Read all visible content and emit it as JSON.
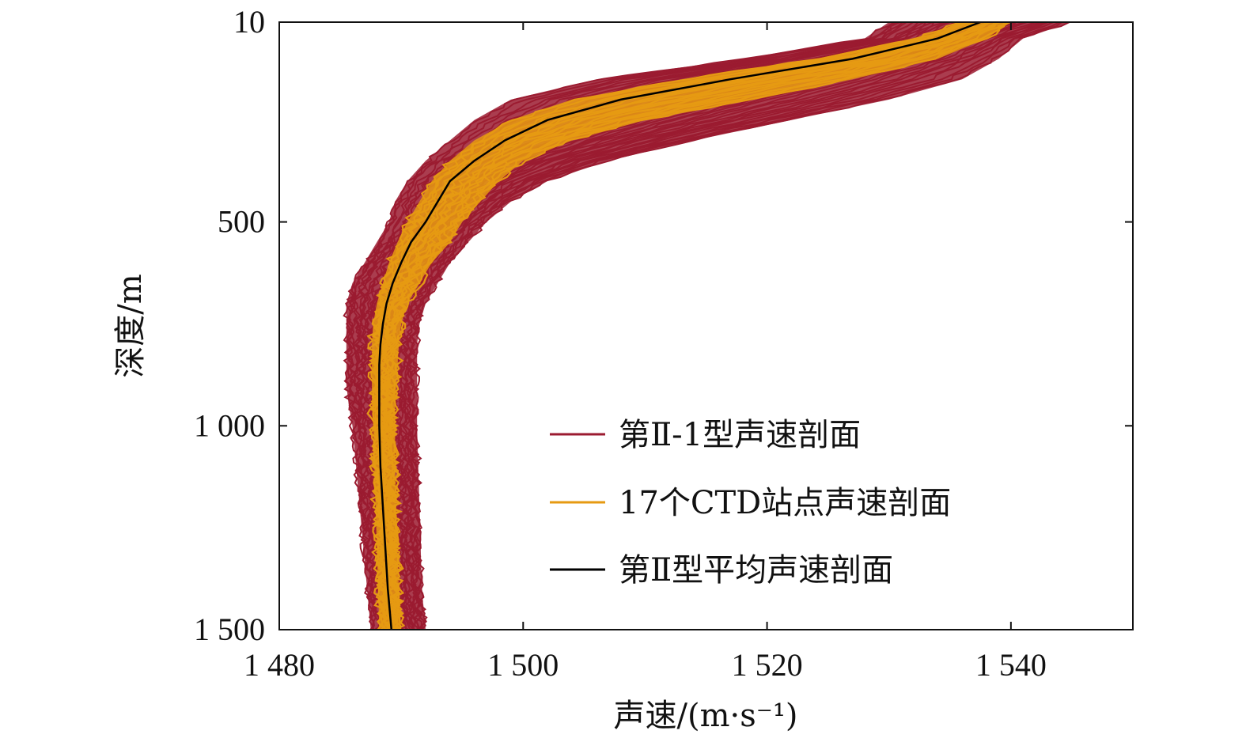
{
  "chart_data": {
    "type": "line",
    "xlabel": "声速/(m·s⁻¹)",
    "ylabel": "深度/m",
    "xlim": [
      1480,
      1550
    ],
    "ylim": [
      1500,
      10
    ],
    "y_inverted": true,
    "x_ticks": [
      1480,
      1500,
      1520,
      1540
    ],
    "x_tick_labels": [
      "1 480",
      "1 500",
      "1 520",
      "1 540"
    ],
    "y_ticks": [
      10,
      500,
      1000,
      1500
    ],
    "y_tick_labels": [
      "10",
      "500",
      "1 000",
      "1 500"
    ],
    "grid": false,
    "legend_position": "lower-right",
    "colors": {
      "type_ii_1": "#9b1b30",
      "ctd": "#e69a12",
      "mean": "#000000",
      "axis": "#111111"
    },
    "series": [
      {
        "name": "第Ⅱ-1型声速剖面",
        "kind": "band",
        "depth": [
          10,
          50,
          100,
          150,
          200,
          250,
          300,
          350,
          400,
          450,
          500,
          550,
          600,
          650,
          700,
          750,
          800,
          850,
          900,
          950,
          1000,
          1100,
          1200,
          1300,
          1400,
          1500
        ],
        "min": [
          1530,
          1528,
          1518,
          1506,
          1499,
          1496,
          1494,
          1492,
          1490.5,
          1489.5,
          1489,
          1488,
          1487,
          1486,
          1485.5,
          1485.5,
          1485.5,
          1485.5,
          1485.5,
          1485.7,
          1486,
          1486.3,
          1486.6,
          1486.9,
          1487.2,
          1487.5
        ],
        "max": [
          1545,
          1541,
          1539,
          1536,
          1530,
          1522,
          1514,
          1507,
          1502,
          1499,
          1497,
          1495.5,
          1494,
          1493,
          1492,
          1491.5,
          1491.3,
          1491.3,
          1491.3,
          1491.3,
          1491.3,
          1491.4,
          1491.5,
          1491.6,
          1491.7,
          1492
        ]
      },
      {
        "name": "17个CTD站点声速剖面",
        "kind": "band",
        "depth": [
          10,
          50,
          100,
          150,
          200,
          250,
          300,
          350,
          400,
          450,
          500,
          550,
          600,
          650,
          700,
          750,
          800,
          850,
          900,
          950,
          1000,
          1100,
          1200,
          1300,
          1400,
          1500
        ],
        "min": [
          1536,
          1532,
          1524,
          1513,
          1504,
          1499,
          1496,
          1494,
          1492.5,
          1491.5,
          1490.5,
          1489.7,
          1489,
          1488.5,
          1488,
          1487.7,
          1487.6,
          1487.6,
          1487.6,
          1487.6,
          1487.7,
          1487.8,
          1487.9,
          1488,
          1488.1,
          1488.2
        ],
        "max": [
          1540,
          1538,
          1534,
          1527,
          1519,
          1510,
          1504,
          1500,
          1498,
          1496.5,
          1495,
          1494,
          1492.5,
          1491.5,
          1490.5,
          1490,
          1489.8,
          1489.7,
          1489.6,
          1489.5,
          1489.5,
          1489.5,
          1489.6,
          1489.7,
          1489.8,
          1490
        ]
      },
      {
        "name": "第Ⅱ型平均声速剖面",
        "kind": "line",
        "depth": [
          10,
          50,
          100,
          150,
          200,
          250,
          300,
          350,
          400,
          450,
          500,
          550,
          600,
          650,
          700,
          750,
          800,
          850,
          900,
          950,
          1000,
          1100,
          1200,
          1300,
          1400,
          1500
        ],
        "speed": [
          1537.5,
          1534,
          1527,
          1517,
          1508,
          1502,
          1498.5,
          1496,
          1494,
          1493,
          1492,
          1490.8,
          1490,
          1489.3,
          1488.8,
          1488.5,
          1488.3,
          1488.2,
          1488.2,
          1488.2,
          1488.2,
          1488.3,
          1488.5,
          1488.7,
          1488.9,
          1489.2
        ]
      }
    ]
  }
}
